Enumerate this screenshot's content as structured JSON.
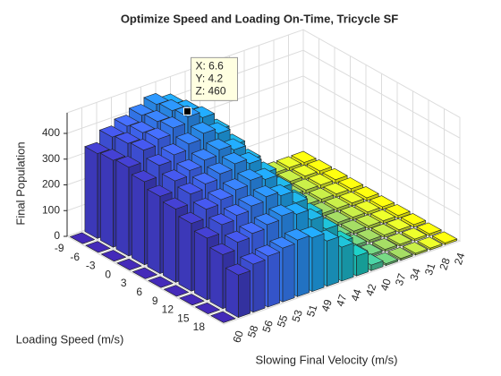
{
  "chart_data": {
    "type": "bar3",
    "title": "Optimize Speed and Loading On-Time, Tricycle SF",
    "x_label": "Slowing Final Velocity (m/s)",
    "y_label": "Loading Speed (m/s)",
    "z_label": "Final Population",
    "x_categories": [
      60,
      58,
      56,
      55,
      53,
      51,
      49,
      47,
      44,
      42,
      40,
      37,
      34,
      31,
      28,
      24
    ],
    "y_categories": [
      -9,
      -6,
      -3,
      0,
      3,
      6,
      9,
      12,
      15,
      18
    ],
    "values": [
      [
        0,
        330,
        374,
        396,
        418,
        440,
        418,
        352,
        264,
        154,
        44,
        13,
        13,
        13,
        13,
        13
      ],
      [
        0,
        338,
        383,
        405,
        428,
        450,
        428,
        360,
        270,
        158,
        45,
        14,
        14,
        14,
        14,
        14
      ],
      [
        0,
        345,
        391,
        414,
        437,
        460,
        437,
        368,
        276,
        161,
        46,
        14,
        14,
        14,
        14,
        14
      ],
      [
        0,
        323,
        366,
        387,
        409,
        430,
        409,
        344,
        258,
        151,
        43,
        13,
        13,
        13,
        13,
        13
      ],
      [
        0,
        300,
        340,
        360,
        380,
        400,
        380,
        320,
        240,
        140,
        40,
        12,
        12,
        12,
        12,
        12
      ],
      [
        0,
        285,
        323,
        342,
        361,
        380,
        361,
        304,
        228,
        133,
        38,
        11,
        11,
        11,
        11,
        11
      ],
      [
        0,
        263,
        298,
        315,
        333,
        350,
        333,
        280,
        210,
        123,
        35,
        11,
        11,
        11,
        11,
        11
      ],
      [
        0,
        240,
        272,
        288,
        304,
        320,
        304,
        256,
        192,
        112,
        32,
        10,
        10,
        10,
        10,
        10
      ],
      [
        0,
        210,
        238,
        252,
        266,
        280,
        266,
        224,
        168,
        98,
        28,
        8,
        8,
        8,
        8,
        8
      ],
      [
        0,
        165,
        187,
        198,
        209,
        220,
        209,
        176,
        132,
        77,
        22,
        7,
        7,
        7,
        7,
        7
      ]
    ],
    "zlim": [
      0,
      480
    ],
    "zticks": [
      0,
      100,
      200,
      300,
      400
    ],
    "grid": true,
    "colormap": [
      "#3e26a8",
      "#4066f5",
      "#1f9ee8",
      "#1bbeb6",
      "#97ca5c",
      "#f9fb0e"
    ],
    "datatip": {
      "row": 2,
      "column": 5,
      "lines": [
        "X: 6.6",
        "Y: 4.2",
        "Z: 460"
      ]
    }
  }
}
